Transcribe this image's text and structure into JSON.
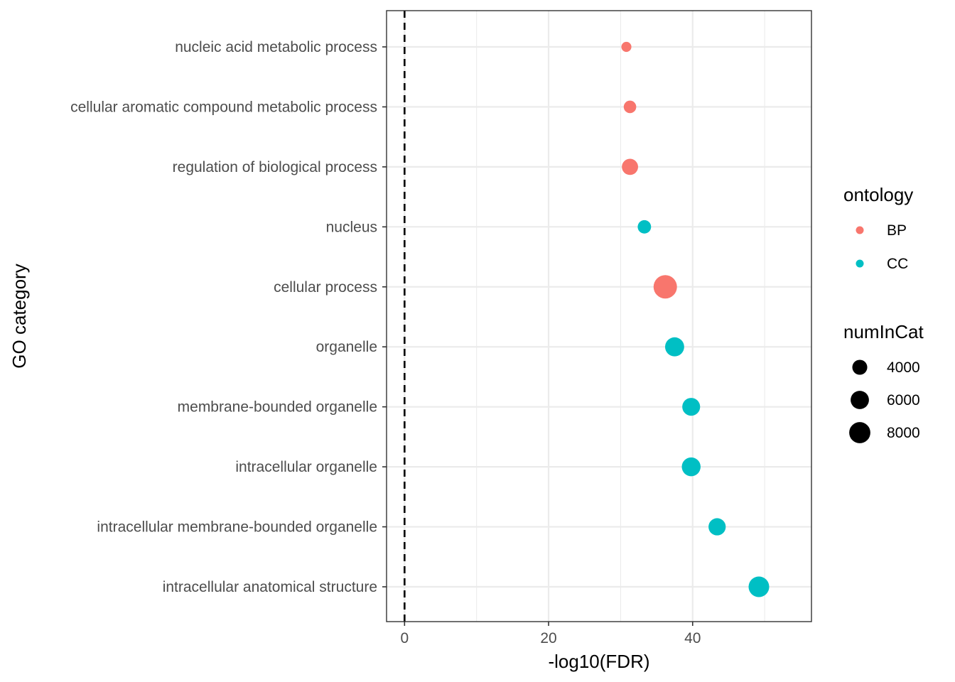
{
  "chart_data": {
    "type": "scatter",
    "xlabel": "-log10(FDR)",
    "ylabel": "GO category",
    "xlim": [
      -2.5,
      56.5
    ],
    "x_ticks": [
      0,
      20,
      40
    ],
    "reference_line_x": 0,
    "grid": true,
    "legend_placement": "right",
    "categories": [
      "nucleic acid metabolic process",
      "cellular aromatic compound metabolic process",
      "regulation of biological process",
      "nucleus",
      "cellular process",
      "organelle",
      "membrane-bounded organelle",
      "intracellular organelle",
      "intracellular membrane-bounded organelle",
      "intracellular anatomical structure"
    ],
    "points": [
      {
        "category": "nucleic acid metabolic process",
        "x": 30.8,
        "ontology": "BP",
        "numInCat": 1800
      },
      {
        "category": "cellular aromatic compound metabolic process",
        "x": 31.3,
        "ontology": "BP",
        "numInCat": 2800
      },
      {
        "category": "regulation of biological process",
        "x": 31.3,
        "ontology": "BP",
        "numInCat": 4700
      },
      {
        "category": "nucleus",
        "x": 33.3,
        "ontology": "CC",
        "numInCat": 3200
      },
      {
        "category": "cellular process",
        "x": 36.2,
        "ontology": "BP",
        "numInCat": 9800
      },
      {
        "category": "organelle",
        "x": 37.5,
        "ontology": "CC",
        "numInCat": 6500
      },
      {
        "category": "membrane-bounded organelle",
        "x": 39.8,
        "ontology": "CC",
        "numInCat": 5700
      },
      {
        "category": "intracellular organelle",
        "x": 39.8,
        "ontology": "CC",
        "numInCat": 6300
      },
      {
        "category": "intracellular membrane-bounded organelle",
        "x": 43.4,
        "ontology": "CC",
        "numInCat": 5300
      },
      {
        "category": "intracellular anatomical structure",
        "x": 49.2,
        "ontology": "CC",
        "numInCat": 7600
      }
    ],
    "legend_color": {
      "title": "ontology",
      "items": [
        {
          "label": "BP",
          "color": "#F8766D"
        },
        {
          "label": "CC",
          "color": "#00BFC4"
        }
      ]
    },
    "legend_size": {
      "title": "numInCat",
      "items": [
        {
          "label": "4000",
          "value": 4000
        },
        {
          "label": "6000",
          "value": 6000
        },
        {
          "label": "8000",
          "value": 8000
        }
      ]
    }
  }
}
